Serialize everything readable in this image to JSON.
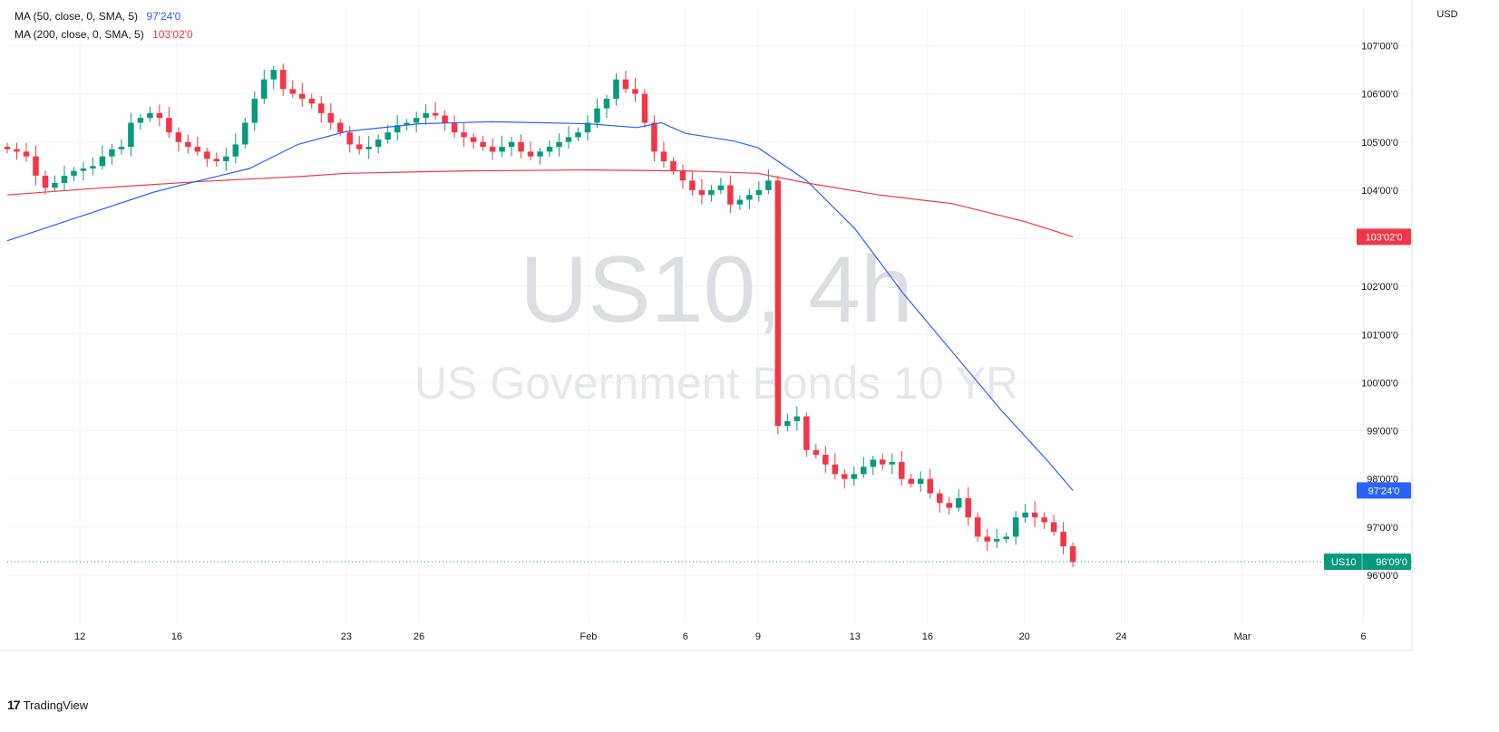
{
  "legend": [
    {
      "label": "MA (50, close, 0, SMA, 5)",
      "value": "97'24'0",
      "color": "#2962FF"
    },
    {
      "label": "MA (200, close, 0, SMA, 5)",
      "value": "103'02'0",
      "color": "#F23645"
    }
  ],
  "watermark": {
    "symbol": "US10, 4h",
    "name": "US Government Bonds 10 YR"
  },
  "brand": {
    "logo": "17",
    "name": "TradingView"
  },
  "colors": {
    "up": "#089981",
    "down": "#F23645",
    "ma50": "#2962FF",
    "ma200": "#F23645",
    "grid": "#F0F3FA"
  },
  "chart_data": {
    "type": "candlestick",
    "currency": "USD",
    "ylim": [
      95,
      107.8
    ],
    "y_ticks": [
      {
        "v": 96,
        "label": "96'00'0"
      },
      {
        "v": 97,
        "label": "97'00'0"
      },
      {
        "v": 98,
        "label": "98'00'0"
      },
      {
        "v": 99,
        "label": "99'00'0"
      },
      {
        "v": 100,
        "label": "100'00'0"
      },
      {
        "v": 101,
        "label": "101'00'0"
      },
      {
        "v": 102,
        "label": "102'00'0"
      },
      {
        "v": 103,
        "label": "103'00'0"
      },
      {
        "v": 104,
        "label": "104'00'0"
      },
      {
        "v": 105,
        "label": "105'00'0"
      },
      {
        "v": 106,
        "label": "106'00'0"
      },
      {
        "v": 107,
        "label": "107'00'0"
      }
    ],
    "xlim": [
      "2026-01-09",
      "2026-03-08"
    ],
    "x_ticks": [
      {
        "d": "2026-01-12",
        "label": "12"
      },
      {
        "d": "2026-01-16",
        "label": "16"
      },
      {
        "d": "2026-01-23",
        "label": "23"
      },
      {
        "d": "2026-01-26",
        "label": "26"
      },
      {
        "d": "2026-02-02",
        "label": "Feb"
      },
      {
        "d": "2026-02-06",
        "label": "6"
      },
      {
        "d": "2026-02-09",
        "label": "9"
      },
      {
        "d": "2026-02-13",
        "label": "13"
      },
      {
        "d": "2026-02-16",
        "label": "16"
      },
      {
        "d": "2026-02-20",
        "label": "20"
      },
      {
        "d": "2026-02-24",
        "label": "24"
      },
      {
        "d": "2026-03-01",
        "label": "Mar"
      },
      {
        "d": "2026-03-06",
        "label": "6"
      }
    ],
    "series_ohlc_close": [
      104.85,
      104.8,
      104.7,
      104.3,
      104.05,
      104.15,
      104.3,
      104.4,
      104.45,
      104.5,
      104.7,
      104.85,
      104.9,
      105.4,
      105.5,
      105.6,
      105.5,
      105.2,
      105.0,
      104.9,
      104.8,
      104.65,
      104.6,
      104.7,
      104.95,
      105.4,
      105.9,
      106.3,
      106.5,
      106.1,
      106.0,
      105.9,
      105.8,
      105.6,
      105.4,
      105.2,
      104.95,
      104.85,
      104.9,
      105.05,
      105.2,
      105.35,
      105.4,
      105.5,
      105.6,
      105.55,
      105.4,
      105.2,
      105.1,
      105.0,
      104.9,
      104.8,
      104.9,
      105.0,
      104.8,
      104.7,
      104.8,
      104.9,
      105.0,
      105.1,
      105.2,
      105.4,
      105.7,
      105.9,
      106.3,
      106.1,
      106.0,
      105.4,
      104.8,
      104.6,
      104.4,
      104.2,
      104.0,
      103.9,
      104.0,
      104.1,
      103.7,
      103.8,
      103.9,
      104.0,
      104.2,
      99.1,
      99.2,
      99.3,
      98.6,
      98.5,
      98.3,
      98.1,
      98.0,
      98.1,
      98.25,
      98.4,
      98.3,
      98.35,
      98.0,
      97.9,
      98.0,
      97.7,
      97.5,
      97.4,
      97.6,
      97.2,
      96.8,
      96.7,
      96.75,
      96.8,
      97.2,
      97.3,
      97.2,
      97.1,
      96.9,
      96.6,
      96.27
    ],
    "candle_range": {
      "start": "2026-01-09",
      "end": "2026-02-22"
    },
    "ma50": {
      "name": "MA (50, close, 0, SMA, 5)",
      "last": "97'24'0",
      "points": [
        [
          "2026-01-09",
          102.95
        ],
        [
          "2026-01-12",
          103.45
        ],
        [
          "2026-01-15",
          103.95
        ],
        [
          "2026-01-16",
          104.08
        ],
        [
          "2026-01-19",
          104.45
        ],
        [
          "2026-01-21",
          104.95
        ],
        [
          "2026-01-23",
          105.22
        ],
        [
          "2026-01-26",
          105.38
        ],
        [
          "2026-01-29",
          105.42
        ],
        [
          "2026-02-02",
          105.38
        ],
        [
          "2026-02-04",
          105.3
        ],
        [
          "2026-02-05",
          105.4
        ],
        [
          "2026-02-06",
          105.18
        ],
        [
          "2026-02-08",
          105.02
        ],
        [
          "2026-02-09",
          104.88
        ],
        [
          "2026-02-11",
          104.2
        ],
        [
          "2026-02-13",
          103.2
        ],
        [
          "2026-02-15",
          101.85
        ],
        [
          "2026-02-17",
          100.65
        ],
        [
          "2026-02-19",
          99.45
        ],
        [
          "2026-02-21",
          98.35
        ],
        [
          "2026-02-22",
          97.76
        ]
      ]
    },
    "ma200": {
      "name": "MA (200, close, 0, SMA, 5)",
      "last": "103'02'0",
      "points": [
        [
          "2026-01-09",
          103.9
        ],
        [
          "2026-01-13",
          104.05
        ],
        [
          "2026-01-17",
          104.18
        ],
        [
          "2026-01-21",
          104.28
        ],
        [
          "2026-01-23",
          104.35
        ],
        [
          "2026-01-28",
          104.4
        ],
        [
          "2026-02-02",
          104.42
        ],
        [
          "2026-02-06",
          104.4
        ],
        [
          "2026-02-09",
          104.35
        ],
        [
          "2026-02-11",
          104.15
        ],
        [
          "2026-02-14",
          103.9
        ],
        [
          "2026-02-17",
          103.72
        ],
        [
          "2026-02-20",
          103.35
        ],
        [
          "2026-02-22",
          103.03
        ]
      ]
    },
    "last_price": {
      "symbol": "US10",
      "value": 96.28,
      "label": "96'09'0"
    }
  }
}
